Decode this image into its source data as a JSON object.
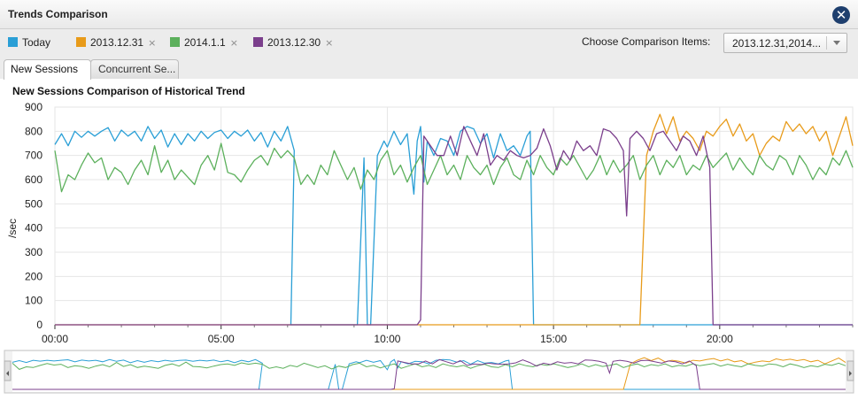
{
  "window": {
    "title": "Trends Comparison"
  },
  "legend": [
    {
      "label": "Today",
      "color": "#2a9fd6",
      "removable": false
    },
    {
      "label": "2013.12.31",
      "color": "#e89b1a",
      "removable": true
    },
    {
      "label": "2014.1.1",
      "color": "#5cb05c",
      "removable": true
    },
    {
      "label": "2013.12.30",
      "color": "#7b3f8c",
      "removable": true
    }
  ],
  "remove_glyph": "×",
  "comparison": {
    "label": "Choose Comparison Items:",
    "value": "2013.12.31,2014..."
  },
  "tabs": [
    {
      "label": "New Sessions",
      "active": true
    },
    {
      "label": "Concurrent Se...",
      "active": false
    }
  ],
  "chart_data": {
    "type": "line",
    "title": "New Sessions Comparison of Historical Trend",
    "ylabel": "/sec",
    "xlabel": "",
    "ylim": [
      0,
      900
    ],
    "yticks": [
      0,
      100,
      200,
      300,
      400,
      500,
      600,
      700,
      800,
      900
    ],
    "xlim_hours": [
      0,
      24
    ],
    "xticks": [
      "00:00",
      "05:00",
      "10:00",
      "15:00",
      "20:00"
    ],
    "xtick_hours": [
      0,
      5,
      10,
      15,
      20
    ],
    "grid": true,
    "legend_position": "top-left",
    "series": [
      {
        "name": "Today",
        "color": "#2a9fd6",
        "points": [
          [
            0,
            745
          ],
          [
            0.2,
            790
          ],
          [
            0.4,
            740
          ],
          [
            0.6,
            800
          ],
          [
            0.8,
            775
          ],
          [
            1.0,
            800
          ],
          [
            1.2,
            780
          ],
          [
            1.4,
            800
          ],
          [
            1.6,
            815
          ],
          [
            1.8,
            760
          ],
          [
            2.0,
            805
          ],
          [
            2.2,
            780
          ],
          [
            2.4,
            800
          ],
          [
            2.6,
            760
          ],
          [
            2.8,
            820
          ],
          [
            3.0,
            770
          ],
          [
            3.2,
            805
          ],
          [
            3.4,
            735
          ],
          [
            3.6,
            790
          ],
          [
            3.8,
            745
          ],
          [
            4.0,
            790
          ],
          [
            4.2,
            760
          ],
          [
            4.4,
            800
          ],
          [
            4.6,
            770
          ],
          [
            4.8,
            795
          ],
          [
            5.0,
            805
          ],
          [
            5.2,
            770
          ],
          [
            5.4,
            800
          ],
          [
            5.6,
            780
          ],
          [
            5.8,
            805
          ],
          [
            6.0,
            760
          ],
          [
            6.2,
            795
          ],
          [
            6.4,
            735
          ],
          [
            6.6,
            800
          ],
          [
            6.8,
            760
          ],
          [
            7.0,
            820
          ],
          [
            7.2,
            720
          ],
          [
            7.1,
            0
          ],
          [
            9.1,
            0
          ],
          [
            9.3,
            690
          ],
          [
            9.4,
            0
          ],
          [
            9.5,
            0
          ],
          [
            9.7,
            700
          ],
          [
            9.9,
            760
          ],
          [
            10.0,
            735
          ],
          [
            10.2,
            800
          ],
          [
            10.4,
            745
          ],
          [
            10.6,
            790
          ],
          [
            10.8,
            540
          ],
          [
            10.9,
            760
          ],
          [
            11.0,
            820
          ],
          [
            11.1,
            590
          ],
          [
            11.2,
            760
          ],
          [
            11.4,
            700
          ],
          [
            11.6,
            770
          ],
          [
            11.8,
            760
          ],
          [
            12.0,
            700
          ],
          [
            12.2,
            800
          ],
          [
            12.4,
            820
          ],
          [
            12.6,
            810
          ],
          [
            12.8,
            750
          ],
          [
            13.0,
            790
          ],
          [
            13.2,
            690
          ],
          [
            13.4,
            790
          ],
          [
            13.6,
            720
          ],
          [
            13.8,
            740
          ],
          [
            14.0,
            700
          ],
          [
            14.2,
            780
          ],
          [
            14.3,
            800
          ],
          [
            14.4,
            0
          ],
          [
            24,
            0
          ]
        ]
      },
      {
        "name": "2013.12.31",
        "color": "#e89b1a",
        "points": [
          [
            0,
            0
          ],
          [
            17.6,
            0
          ],
          [
            17.8,
            700
          ],
          [
            18.0,
            800
          ],
          [
            18.2,
            870
          ],
          [
            18.4,
            790
          ],
          [
            18.6,
            860
          ],
          [
            18.8,
            760
          ],
          [
            19.0,
            800
          ],
          [
            19.2,
            770
          ],
          [
            19.4,
            720
          ],
          [
            19.6,
            800
          ],
          [
            19.8,
            780
          ],
          [
            20.0,
            820
          ],
          [
            20.2,
            850
          ],
          [
            20.4,
            780
          ],
          [
            20.6,
            830
          ],
          [
            20.8,
            760
          ],
          [
            21.0,
            790
          ],
          [
            21.2,
            700
          ],
          [
            21.4,
            750
          ],
          [
            21.6,
            780
          ],
          [
            21.8,
            760
          ],
          [
            22.0,
            840
          ],
          [
            22.2,
            800
          ],
          [
            22.4,
            830
          ],
          [
            22.6,
            790
          ],
          [
            22.8,
            820
          ],
          [
            23.0,
            760
          ],
          [
            23.2,
            800
          ],
          [
            23.4,
            700
          ],
          [
            23.6,
            780
          ],
          [
            23.8,
            860
          ],
          [
            24.0,
            740
          ]
        ]
      },
      {
        "name": "2014.1.1",
        "color": "#5cb05c",
        "points": [
          [
            0,
            720
          ],
          [
            0.2,
            550
          ],
          [
            0.4,
            620
          ],
          [
            0.6,
            600
          ],
          [
            0.8,
            660
          ],
          [
            1.0,
            710
          ],
          [
            1.2,
            670
          ],
          [
            1.4,
            690
          ],
          [
            1.6,
            600
          ],
          [
            1.8,
            650
          ],
          [
            2.0,
            630
          ],
          [
            2.2,
            580
          ],
          [
            2.4,
            640
          ],
          [
            2.6,
            680
          ],
          [
            2.8,
            620
          ],
          [
            3.0,
            740
          ],
          [
            3.2,
            630
          ],
          [
            3.4,
            680
          ],
          [
            3.6,
            600
          ],
          [
            3.8,
            640
          ],
          [
            4.0,
            610
          ],
          [
            4.2,
            580
          ],
          [
            4.4,
            660
          ],
          [
            4.6,
            700
          ],
          [
            4.8,
            640
          ],
          [
            5.0,
            750
          ],
          [
            5.2,
            630
          ],
          [
            5.4,
            620
          ],
          [
            5.6,
            590
          ],
          [
            5.8,
            640
          ],
          [
            6.0,
            680
          ],
          [
            6.2,
            700
          ],
          [
            6.4,
            660
          ],
          [
            6.6,
            730
          ],
          [
            6.8,
            690
          ],
          [
            7.0,
            720
          ],
          [
            7.2,
            690
          ],
          [
            7.4,
            580
          ],
          [
            7.6,
            620
          ],
          [
            7.8,
            580
          ],
          [
            8.0,
            660
          ],
          [
            8.2,
            620
          ],
          [
            8.4,
            720
          ],
          [
            8.6,
            660
          ],
          [
            8.8,
            600
          ],
          [
            9.0,
            650
          ],
          [
            9.2,
            560
          ],
          [
            9.4,
            640
          ],
          [
            9.6,
            600
          ],
          [
            9.8,
            680
          ],
          [
            10.0,
            720
          ],
          [
            10.2,
            620
          ],
          [
            10.4,
            660
          ],
          [
            10.6,
            590
          ],
          [
            10.8,
            650
          ],
          [
            11.0,
            700
          ],
          [
            11.2,
            580
          ],
          [
            11.4,
            640
          ],
          [
            11.6,
            700
          ],
          [
            11.8,
            620
          ],
          [
            12.0,
            660
          ],
          [
            12.2,
            600
          ],
          [
            12.4,
            700
          ],
          [
            12.6,
            650
          ],
          [
            12.8,
            620
          ],
          [
            13.0,
            660
          ],
          [
            13.2,
            580
          ],
          [
            13.4,
            650
          ],
          [
            13.6,
            690
          ],
          [
            13.8,
            620
          ],
          [
            14.0,
            600
          ],
          [
            14.2,
            680
          ],
          [
            14.4,
            620
          ],
          [
            14.6,
            700
          ],
          [
            14.8,
            650
          ],
          [
            15.0,
            620
          ],
          [
            15.2,
            690
          ],
          [
            15.4,
            660
          ],
          [
            15.6,
            700
          ],
          [
            15.8,
            650
          ],
          [
            16.0,
            600
          ],
          [
            16.2,
            640
          ],
          [
            16.4,
            700
          ],
          [
            16.6,
            620
          ],
          [
            16.8,
            680
          ],
          [
            17.0,
            630
          ],
          [
            17.2,
            660
          ],
          [
            17.4,
            700
          ],
          [
            17.6,
            600
          ],
          [
            17.8,
            660
          ],
          [
            18.0,
            700
          ],
          [
            18.2,
            620
          ],
          [
            18.4,
            680
          ],
          [
            18.6,
            650
          ],
          [
            18.8,
            700
          ],
          [
            19.0,
            620
          ],
          [
            19.2,
            660
          ],
          [
            19.4,
            640
          ],
          [
            19.6,
            700
          ],
          [
            19.8,
            650
          ],
          [
            20.0,
            680
          ],
          [
            20.2,
            710
          ],
          [
            20.4,
            640
          ],
          [
            20.6,
            690
          ],
          [
            20.8,
            650
          ],
          [
            21.0,
            620
          ],
          [
            21.2,
            700
          ],
          [
            21.4,
            660
          ],
          [
            21.6,
            640
          ],
          [
            21.8,
            700
          ],
          [
            22.0,
            680
          ],
          [
            22.2,
            620
          ],
          [
            22.4,
            700
          ],
          [
            22.6,
            660
          ],
          [
            22.8,
            600
          ],
          [
            23.0,
            650
          ],
          [
            23.2,
            620
          ],
          [
            23.4,
            690
          ],
          [
            23.6,
            660
          ],
          [
            23.8,
            720
          ],
          [
            24.0,
            650
          ]
        ]
      },
      {
        "name": "2013.12.30",
        "color": "#7b3f8c",
        "points": [
          [
            0,
            0
          ],
          [
            10.9,
            0
          ],
          [
            11.0,
            20
          ],
          [
            11.1,
            780
          ],
          [
            11.3,
            740
          ],
          [
            11.5,
            700
          ],
          [
            11.7,
            700
          ],
          [
            11.9,
            780
          ],
          [
            12.1,
            700
          ],
          [
            12.3,
            820
          ],
          [
            12.5,
            760
          ],
          [
            12.7,
            700
          ],
          [
            12.9,
            790
          ],
          [
            13.1,
            660
          ],
          [
            13.3,
            700
          ],
          [
            13.5,
            680
          ],
          [
            13.7,
            720
          ],
          [
            13.9,
            700
          ],
          [
            14.1,
            690
          ],
          [
            14.3,
            700
          ],
          [
            14.5,
            730
          ],
          [
            14.7,
            810
          ],
          [
            14.9,
            740
          ],
          [
            15.1,
            640
          ],
          [
            15.3,
            720
          ],
          [
            15.5,
            680
          ],
          [
            15.7,
            760
          ],
          [
            15.9,
            720
          ],
          [
            16.1,
            740
          ],
          [
            16.3,
            700
          ],
          [
            16.5,
            810
          ],
          [
            16.7,
            800
          ],
          [
            16.9,
            770
          ],
          [
            17.1,
            720
          ],
          [
            17.2,
            450
          ],
          [
            17.3,
            770
          ],
          [
            17.5,
            800
          ],
          [
            17.7,
            770
          ],
          [
            17.9,
            720
          ],
          [
            18.1,
            790
          ],
          [
            18.3,
            800
          ],
          [
            18.5,
            760
          ],
          [
            18.7,
            720
          ],
          [
            18.9,
            780
          ],
          [
            19.1,
            760
          ],
          [
            19.3,
            700
          ],
          [
            19.5,
            780
          ],
          [
            19.7,
            650
          ],
          [
            19.8,
            0
          ],
          [
            24,
            0
          ]
        ]
      }
    ]
  }
}
